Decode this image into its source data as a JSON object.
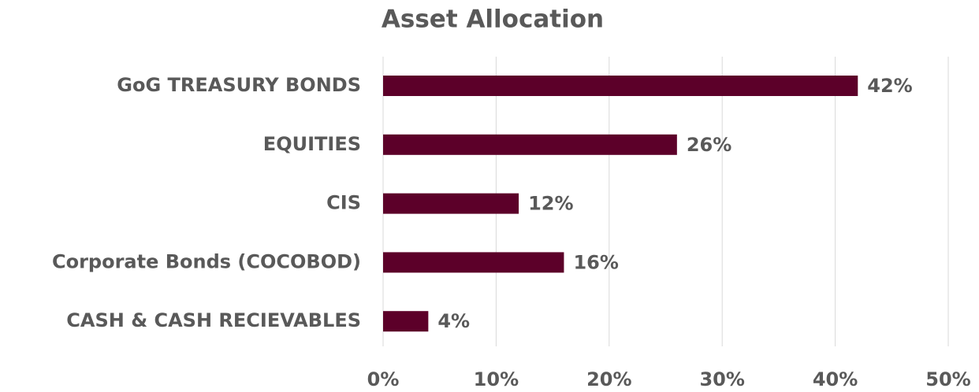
{
  "chart_data": {
    "type": "hbar",
    "title": "Asset Allocation",
    "categories": [
      "GoG TREASURY BONDS",
      "EQUITIES",
      "CIS",
      "Corporate Bonds (COCOBOD)",
      "CASH & CASH RECIEVABLES"
    ],
    "values": [
      42,
      26,
      12,
      16,
      4
    ],
    "value_labels": [
      "42%",
      "26%",
      "12%",
      "16%",
      "4%"
    ],
    "color": "#5c0029",
    "xlim": [
      0,
      50
    ],
    "xticks": [
      {
        "value": 0,
        "label": "0%"
      },
      {
        "value": 10,
        "label": "10%"
      },
      {
        "value": 20,
        "label": "20%"
      },
      {
        "value": 30,
        "label": "30%"
      },
      {
        "value": 40,
        "label": "40%"
      },
      {
        "value": 50,
        "label": "50%"
      }
    ],
    "grid": true
  }
}
